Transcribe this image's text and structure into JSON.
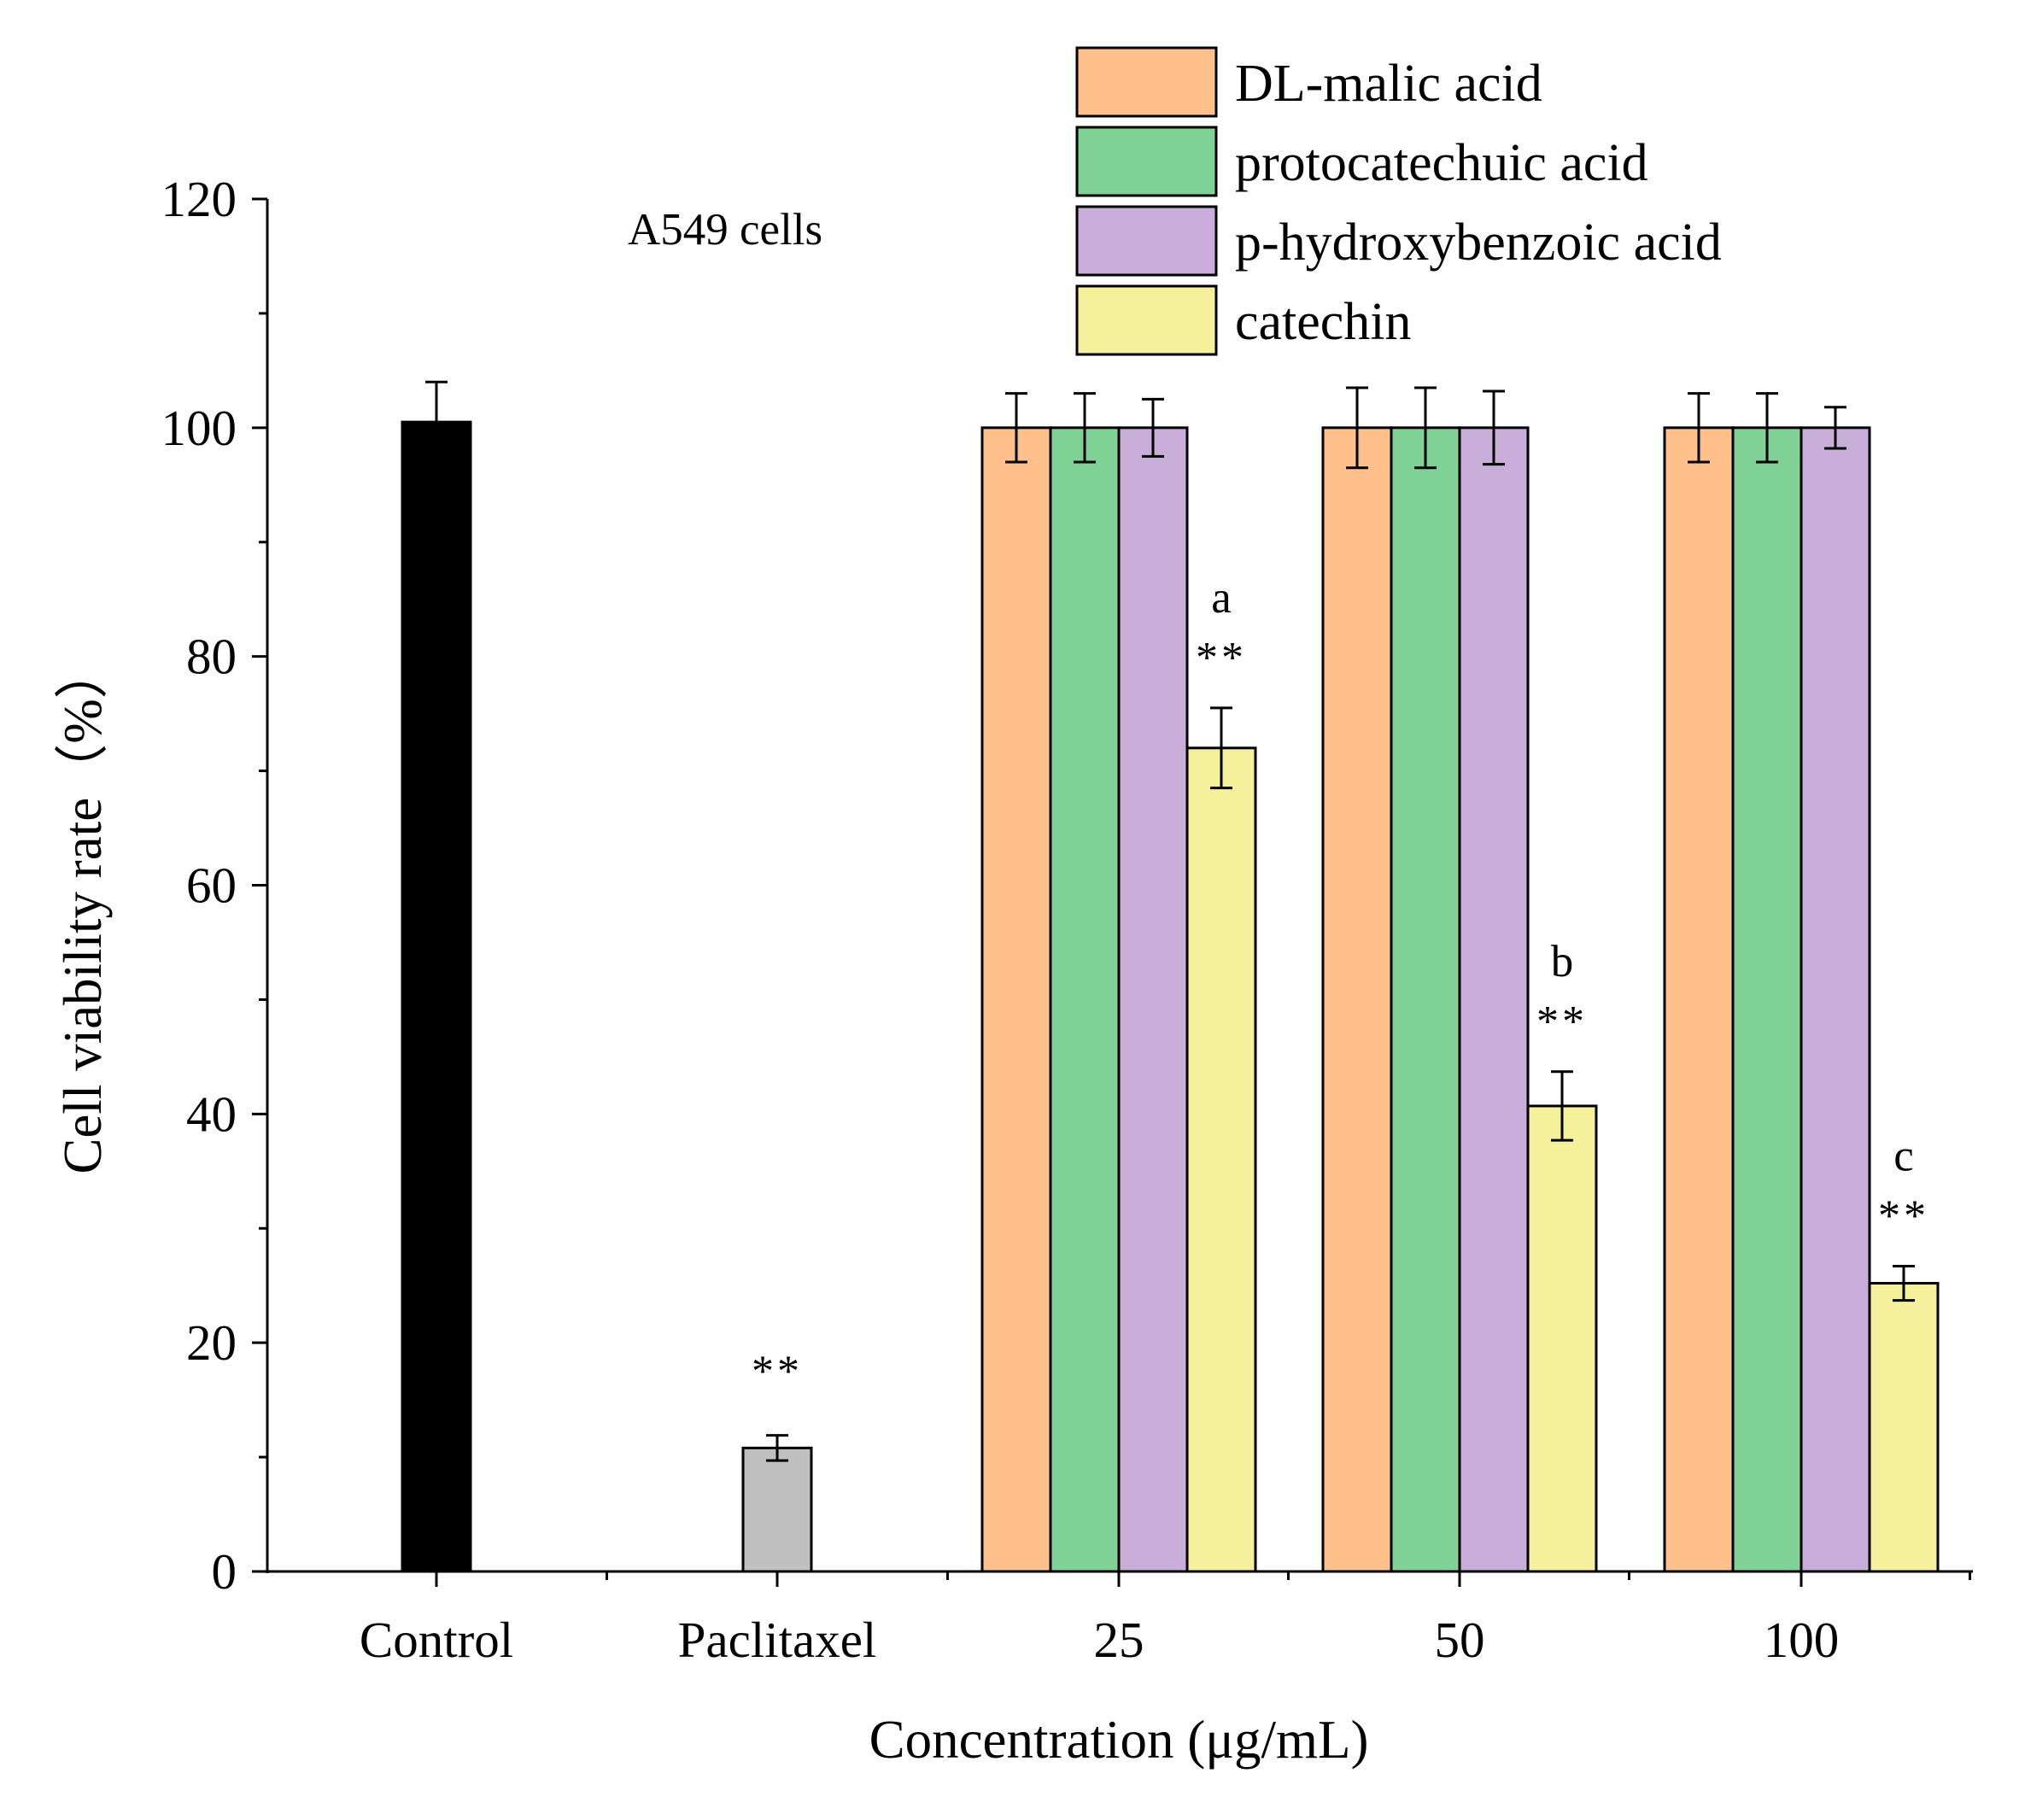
{
  "chart_data": {
    "type": "bar",
    "title": "A549 cells",
    "xlabel": "Concentration (μg/mL)",
    "ylabel": "Cell viability rate（%）",
    "ylim": [
      0,
      120
    ],
    "yticks": [
      0,
      20,
      40,
      60,
      80,
      100,
      120
    ],
    "categories": [
      "Control",
      "Paclitaxel",
      "25",
      "50",
      "100"
    ],
    "controls": [
      {
        "name": "Control",
        "value": 100.5,
        "error": 3.5,
        "color": "#000000",
        "label": ""
      },
      {
        "name": "Paclitaxel",
        "value": 10.8,
        "error": 1.1,
        "color": "#c0c0c0",
        "label": "**"
      }
    ],
    "series": [
      {
        "name": "DL-malic acid",
        "color": "#ffc08c",
        "values": [
          null,
          null,
          100,
          100,
          100
        ],
        "errors": [
          null,
          null,
          3.0,
          3.5,
          3.0
        ]
      },
      {
        "name": "protocatechuic acid",
        "color": "#7fd196",
        "values": [
          null,
          null,
          100,
          100,
          100
        ],
        "errors": [
          null,
          null,
          3.0,
          3.5,
          3.0
        ]
      },
      {
        "name": "p-hydroxybenzoic acid",
        "color": "#c8aed8",
        "values": [
          null,
          null,
          100,
          100,
          100
        ],
        "errors": [
          null,
          null,
          2.5,
          3.2,
          1.8
        ]
      },
      {
        "name": "catechin",
        "color": "#f5f09c",
        "values": [
          null,
          null,
          72,
          40.7,
          25.2
        ],
        "errors": [
          null,
          null,
          3.5,
          3.0,
          1.5
        ],
        "annotations": [
          null,
          null,
          {
            "letter": "a",
            "sig": "**"
          },
          {
            "letter": "b",
            "sig": "**"
          },
          {
            "letter": "c",
            "sig": "**"
          }
        ]
      }
    ]
  }
}
